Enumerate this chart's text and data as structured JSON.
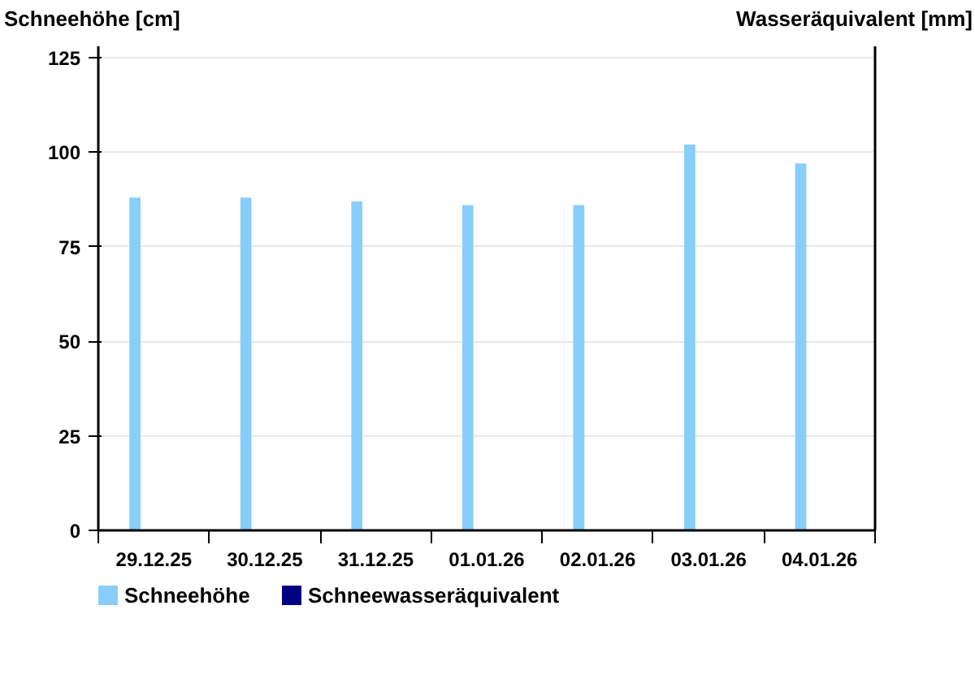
{
  "chart_data": {
    "type": "bar",
    "ylabel": "Schneehöhe [cm]",
    "y2label": "Wasseräquivalent [mm]",
    "categories": [
      "29.12.25",
      "30.12.25",
      "31.12.25",
      "01.01.26",
      "02.01.26",
      "03.01.26",
      "04.01.26"
    ],
    "series": [
      {
        "name": "Schneehöhe",
        "color": "#87cefa",
        "values": [
          88,
          88,
          87,
          86,
          86,
          102,
          97
        ]
      },
      {
        "name": "Schneewasseräquivalent",
        "color": "#000080",
        "values": [
          null,
          null,
          null,
          null,
          null,
          null,
          null
        ]
      }
    ],
    "ylim": [
      0,
      128
    ],
    "yticks": [
      0,
      25,
      50,
      75,
      100,
      125
    ],
    "grid": "y",
    "legend": "bottom"
  }
}
